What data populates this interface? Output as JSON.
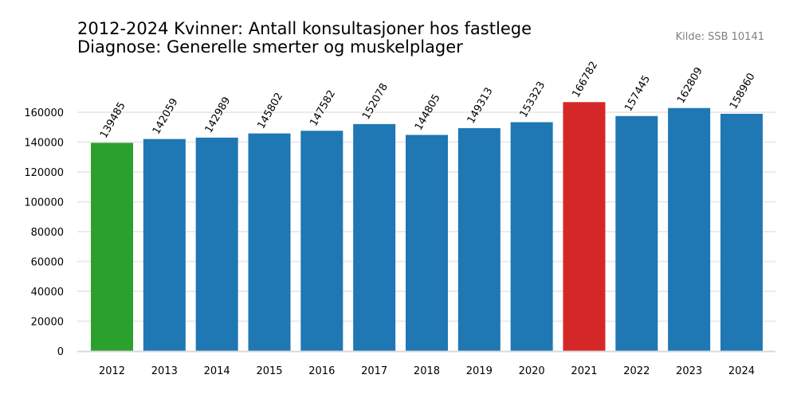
{
  "chart_data": {
    "type": "bar",
    "title": "2012-2024 Kvinner: Antall konsultasjoner hos fastlege",
    "subtitle": "Diagnose: Generelle smerter og muskelplager",
    "source": "Kilde: SSB 10141",
    "xlabel": "",
    "ylabel": "",
    "categories": [
      "2012",
      "2013",
      "2014",
      "2015",
      "2016",
      "2017",
      "2018",
      "2019",
      "2020",
      "2021",
      "2022",
      "2023",
      "2024"
    ],
    "values": [
      139485,
      142059,
      142989,
      145802,
      147582,
      152078,
      144805,
      149313,
      153323,
      166782,
      157445,
      162809,
      158960
    ],
    "ylim": [
      0,
      175000
    ],
    "yticks": [
      0,
      20000,
      40000,
      60000,
      80000,
      100000,
      120000,
      140000,
      160000
    ],
    "grid": true,
    "colors": {
      "default": "#1f77b4",
      "min": "#2ca02c",
      "max": "#d62728"
    }
  }
}
